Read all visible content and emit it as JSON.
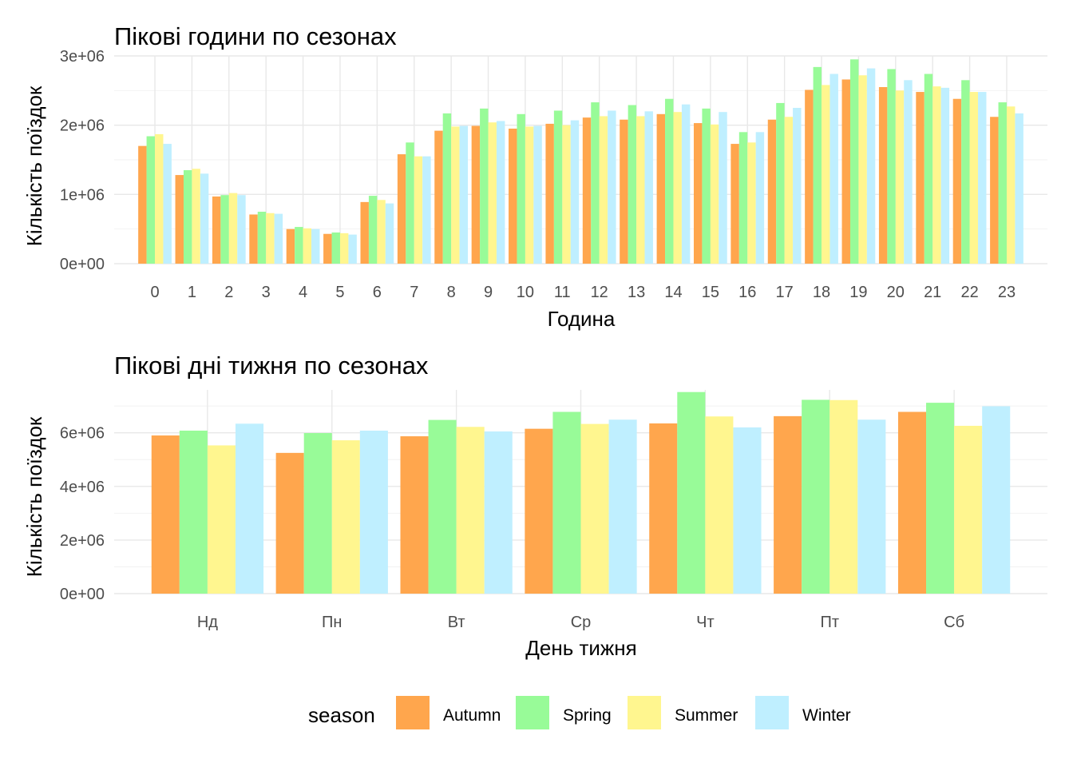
{
  "chart_data": [
    {
      "type": "bar",
      "title": "Пікові години по сезонах",
      "xlabel": "Година",
      "ylabel": "Кількість поїздок",
      "ylim": [
        0,
        3000000
      ],
      "yticks": [
        0,
        1000000,
        2000000,
        3000000
      ],
      "ytick_labels": [
        "0e+00",
        "1e+06",
        "2e+06",
        "3e+06"
      ],
      "grid": true,
      "categories": [
        "0",
        "1",
        "2",
        "3",
        "4",
        "5",
        "6",
        "7",
        "8",
        "9",
        "10",
        "11",
        "12",
        "13",
        "14",
        "15",
        "16",
        "17",
        "18",
        "19",
        "20",
        "21",
        "22",
        "23"
      ],
      "series": [
        {
          "name": "Autumn",
          "values": [
            1700000,
            1280000,
            970000,
            710000,
            500000,
            430000,
            890000,
            1580000,
            1920000,
            1990000,
            1950000,
            2020000,
            2110000,
            2080000,
            2160000,
            2030000,
            1730000,
            2080000,
            2510000,
            2660000,
            2550000,
            2480000,
            2380000,
            2120000
          ]
        },
        {
          "name": "Spring",
          "values": [
            1840000,
            1350000,
            990000,
            750000,
            530000,
            450000,
            980000,
            1750000,
            2170000,
            2240000,
            2160000,
            2210000,
            2330000,
            2290000,
            2380000,
            2240000,
            1900000,
            2320000,
            2840000,
            2950000,
            2810000,
            2740000,
            2650000,
            2330000
          ]
        },
        {
          "name": "Summer",
          "values": [
            1870000,
            1370000,
            1020000,
            730000,
            510000,
            440000,
            920000,
            1550000,
            1980000,
            2040000,
            1980000,
            2000000,
            2130000,
            2130000,
            2190000,
            2010000,
            1750000,
            2120000,
            2580000,
            2720000,
            2500000,
            2560000,
            2480000,
            2270000
          ]
        },
        {
          "name": "Winter",
          "values": [
            1730000,
            1300000,
            990000,
            720000,
            500000,
            420000,
            870000,
            1550000,
            1990000,
            2060000,
            1990000,
            2070000,
            2210000,
            2200000,
            2300000,
            2190000,
            1900000,
            2250000,
            2740000,
            2820000,
            2650000,
            2540000,
            2480000,
            2170000
          ]
        }
      ]
    },
    {
      "type": "bar",
      "title": "Пікові дні тижня по сезонах",
      "xlabel": "День тижня",
      "ylabel": "Кількість поїздок",
      "ylim": [
        0,
        7600000
      ],
      "yticks": [
        0,
        2000000,
        4000000,
        6000000
      ],
      "ytick_labels": [
        "0e+00",
        "2e+06",
        "4e+06",
        "6e+06"
      ],
      "grid": true,
      "categories": [
        "Нд",
        "Пн",
        "Вт",
        "Ср",
        "Чт",
        "Пт",
        "Сб"
      ],
      "series": [
        {
          "name": "Autumn",
          "values": [
            5900000,
            5250000,
            5870000,
            6150000,
            6350000,
            6620000,
            6780000
          ]
        },
        {
          "name": "Spring",
          "values": [
            6080000,
            5990000,
            6480000,
            6780000,
            7520000,
            7230000,
            7120000
          ]
        },
        {
          "name": "Summer",
          "values": [
            5530000,
            5720000,
            6220000,
            6330000,
            6610000,
            7220000,
            6260000
          ]
        },
        {
          "name": "Winter",
          "values": [
            6340000,
            6080000,
            6050000,
            6490000,
            6200000,
            6490000,
            6990000
          ]
        }
      ]
    }
  ],
  "legend": {
    "title": "season",
    "position": "bottom",
    "items": [
      {
        "label": "Autumn",
        "color": "#FFA64D"
      },
      {
        "label": "Spring",
        "color": "#98FB98"
      },
      {
        "label": "Summer",
        "color": "#FFF68F"
      },
      {
        "label": "Winter",
        "color": "#BFEFFF"
      }
    ]
  }
}
